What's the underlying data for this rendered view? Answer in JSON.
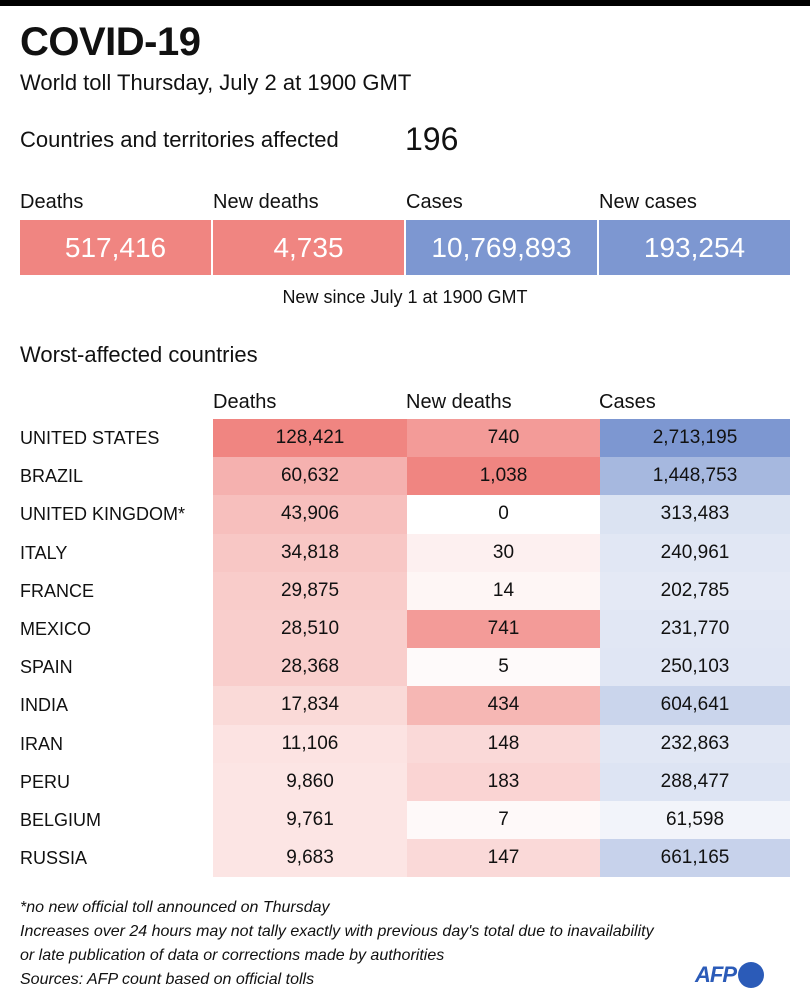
{
  "header": {
    "title": "COVID-19",
    "subtitle": "World toll Thursday, July 2 at 1900 GMT",
    "affected_label": "Countries and territories affected",
    "affected_value": "196"
  },
  "summary": {
    "items": [
      {
        "label": "Deaths",
        "value": "517,416",
        "color": "#f08581"
      },
      {
        "label": "New deaths",
        "value": "4,735",
        "color": "#f08581"
      },
      {
        "label": "Cases",
        "value": "10,769,893",
        "color": "#7d97d1"
      },
      {
        "label": "New cases",
        "value": "193,254",
        "color": "#7d97d1"
      }
    ],
    "note": "New since July 1 at 1900 GMT"
  },
  "colors": {
    "death_scale": "#f08581",
    "case_scale": "#7d97d1",
    "text": "#111111",
    "afp_blue": "#2b5bb8"
  },
  "chart_data": {
    "type": "table",
    "title": "Worst-affected countries",
    "columns": [
      "Deaths",
      "New deaths",
      "Cases"
    ],
    "rows": [
      {
        "country": "UNITED STATES",
        "deaths": 128421,
        "new_deaths": 740,
        "cases": 2713195,
        "deaths_label": "128,421",
        "new_deaths_label": "740",
        "cases_label": "2,713,195"
      },
      {
        "country": "BRAZIL",
        "deaths": 60632,
        "new_deaths": 1038,
        "cases": 1448753,
        "deaths_label": "60,632",
        "new_deaths_label": "1,038",
        "cases_label": "1,448,753"
      },
      {
        "country": "UNITED KINGDOM*",
        "deaths": 43906,
        "new_deaths": 0,
        "cases": 313483,
        "deaths_label": "43,906",
        "new_deaths_label": "0",
        "cases_label": "313,483"
      },
      {
        "country": "ITALY",
        "deaths": 34818,
        "new_deaths": 30,
        "cases": 240961,
        "deaths_label": "34,818",
        "new_deaths_label": "30",
        "cases_label": "240,961"
      },
      {
        "country": "FRANCE",
        "deaths": 29875,
        "new_deaths": 14,
        "cases": 202785,
        "deaths_label": "29,875",
        "new_deaths_label": "14",
        "cases_label": "202,785"
      },
      {
        "country": "MEXICO",
        "deaths": 28510,
        "new_deaths": 741,
        "cases": 231770,
        "deaths_label": "28,510",
        "new_deaths_label": "741",
        "cases_label": "231,770"
      },
      {
        "country": "SPAIN",
        "deaths": 28368,
        "new_deaths": 5,
        "cases": 250103,
        "deaths_label": "28,368",
        "new_deaths_label": "5",
        "cases_label": "250,103"
      },
      {
        "country": "INDIA",
        "deaths": 17834,
        "new_deaths": 434,
        "cases": 604641,
        "deaths_label": "17,834",
        "new_deaths_label": "434",
        "cases_label": "604,641"
      },
      {
        "country": "IRAN",
        "deaths": 11106,
        "new_deaths": 148,
        "cases": 232863,
        "deaths_label": "11,106",
        "new_deaths_label": "148",
        "cases_label": "232,863"
      },
      {
        "country": "PERU",
        "deaths": 9860,
        "new_deaths": 183,
        "cases": 288477,
        "deaths_label": "9,860",
        "new_deaths_label": "183",
        "cases_label": "288,477"
      },
      {
        "country": "BELGIUM",
        "deaths": 9761,
        "new_deaths": 7,
        "cases": 61598,
        "deaths_label": "9,761",
        "new_deaths_label": "7",
        "cases_label": "61,598"
      },
      {
        "country": "RUSSIA",
        "deaths": 9683,
        "new_deaths": 147,
        "cases": 661165,
        "deaths_label": "9,683",
        "new_deaths_label": "147",
        "cases_label": "661,165"
      }
    ]
  },
  "footnotes": {
    "asterisk": "*no new official toll announced on Thursday",
    "disclaimer_line1": "Increases over 24 hours may not tally exactly with previous day's total due to inavailability",
    "disclaimer_line2": "or late publication of data or corrections made by authorities",
    "sources": "Sources: AFP count based on official tolls"
  },
  "logo": {
    "text": "AFP",
    "icon": "afp-globe-icon"
  }
}
